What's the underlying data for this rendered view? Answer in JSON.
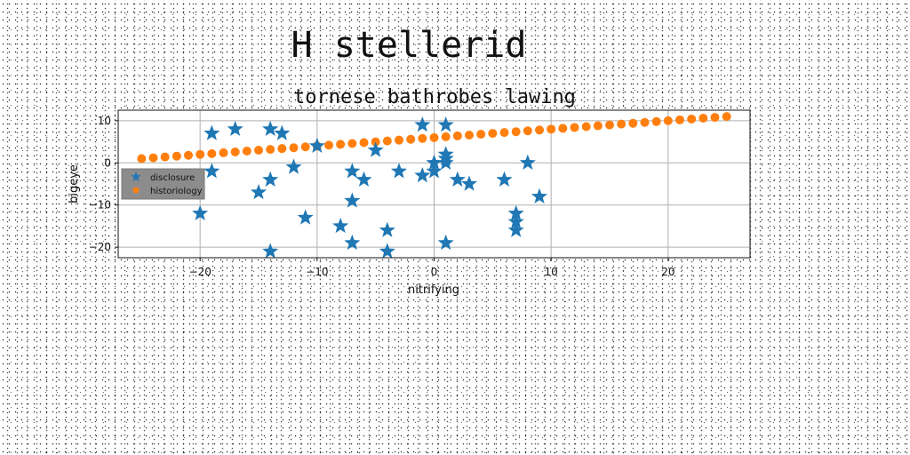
{
  "page": {
    "title": "H stellerid"
  },
  "chart_data": {
    "type": "scatter",
    "title": "tornese bathrobes lawing",
    "xlabel": "nitrifying",
    "ylabel": "bigeye",
    "xlim": [
      -27,
      27
    ],
    "ylim": [
      -22.5,
      12.5
    ],
    "xticks": [
      -20,
      -10,
      0,
      10,
      20
    ],
    "yticks": [
      10,
      0,
      -10,
      -20
    ],
    "grid": true,
    "legend_position": "center-left",
    "colors": {
      "disclosure": "#1f77b4",
      "historiology": "#ff7f0e"
    },
    "series": [
      {
        "name": "disclosure",
        "marker": "star",
        "points": [
          [
            -20,
            -12
          ],
          [
            -19,
            7
          ],
          [
            -19,
            -2
          ],
          [
            -17,
            8
          ],
          [
            -15,
            -7
          ],
          [
            -14,
            8
          ],
          [
            -14,
            -4
          ],
          [
            -14,
            -21
          ],
          [
            -13,
            7
          ],
          [
            -12,
            -1
          ],
          [
            -11,
            -13
          ],
          [
            -10,
            4
          ],
          [
            -8,
            -15
          ],
          [
            -7,
            -2
          ],
          [
            -7,
            -9
          ],
          [
            -7,
            -19
          ],
          [
            -6,
            -4
          ],
          [
            -5,
            3
          ],
          [
            -4,
            -16
          ],
          [
            -4,
            -21
          ],
          [
            -3,
            -2
          ],
          [
            -1,
            9
          ],
          [
            -1,
            -3
          ],
          [
            0,
            -2
          ],
          [
            0,
            0
          ],
          [
            1,
            9
          ],
          [
            1,
            2
          ],
          [
            1,
            1
          ],
          [
            1,
            0
          ],
          [
            1,
            -19
          ],
          [
            2,
            -4
          ],
          [
            3,
            -5
          ],
          [
            6,
            -4
          ],
          [
            7,
            -12
          ],
          [
            7,
            -14
          ],
          [
            7,
            -16
          ],
          [
            8,
            0
          ],
          [
            9,
            -8
          ]
        ]
      },
      {
        "name": "historiology",
        "marker": "circle",
        "x_start": -25,
        "x_end": 25,
        "count": 51,
        "y_start": 1,
        "y_end": 11
      }
    ]
  }
}
